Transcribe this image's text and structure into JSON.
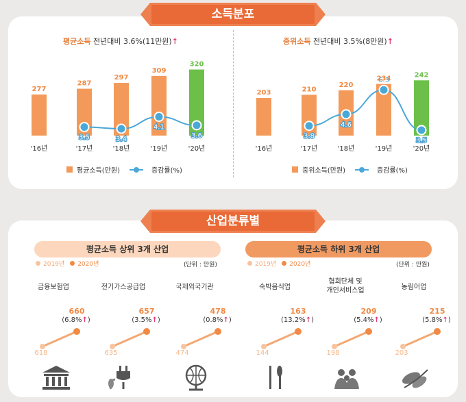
{
  "section1": {
    "title": "소득분포",
    "left": {
      "title_hl": "평균소득",
      "title_rest": "전년대비 3.6%(11만원)",
      "title_arrow": "↑",
      "legend_bar": "평균소득(만원)",
      "legend_line": "증감률(%)"
    },
    "right": {
      "title_hl": "중위소득",
      "title_rest": "전년대비 3.5%(8만원)",
      "title_arrow": "↑",
      "legend_bar": "중위소득(만원)",
      "legend_line": "증감률(%)"
    }
  },
  "section2": {
    "title": "산업분류별",
    "top": {
      "title": "평균소득 상위 3개 산업",
      "legend_2019": "2019년",
      "legend_2020": "2020년",
      "unit": "(단위 : 만원)",
      "items": [
        {
          "name": "금융보험업",
          "v2019": "618",
          "v2020": "660",
          "pct": "(6.8%",
          "icon": "bank-icon"
        },
        {
          "name": "전기가스공급업",
          "v2019": "635",
          "v2020": "657",
          "pct": "(3.5%",
          "icon": "plug-icon"
        },
        {
          "name": "국제외국기관",
          "v2019": "474",
          "v2020": "478",
          "pct": "(0.8%",
          "icon": "globe-icon"
        }
      ]
    },
    "bottom": {
      "title": "평균소득 하위 3개 산업",
      "legend_2019": "2019년",
      "legend_2020": "2020년",
      "unit": "(단위 : 만원)",
      "items": [
        {
          "name": "숙박음식업",
          "v2019": "144",
          "v2020": "163",
          "pct": "(13.2%",
          "icon": "utensils-icon"
        },
        {
          "name": "협회단체 및\n개인서비스업",
          "v2019": "198",
          "v2020": "209",
          "pct": "(5.4%",
          "icon": "people-icon"
        },
        {
          "name": "농림어업",
          "v2019": "203",
          "v2020": "215",
          "pct": "(5.8%",
          "icon": "crops-icon"
        }
      ]
    },
    "arrow": "↑",
    "close_paren": ")"
  },
  "chart_data": [
    {
      "type": "bar",
      "title": "평균소득 전년대비 3.6%(11만원)",
      "categories": [
        "'16년",
        "'17년",
        "'18년",
        "'19년",
        "'20년"
      ],
      "series": [
        {
          "name": "평균소득(만원)",
          "type": "bar",
          "values": [
            277,
            287,
            297,
            309,
            320
          ]
        },
        {
          "name": "증감률(%)",
          "type": "line",
          "values": [
            null,
            3.5,
            3.4,
            4.1,
            3.6
          ]
        }
      ],
      "highlight_color": "#6cc04a",
      "bar_color": "#f39a5a",
      "line_color": "#4aa8d8"
    },
    {
      "type": "bar",
      "title": "중위소득 전년대비 3.5%(8만원)",
      "categories": [
        "'16년",
        "'17년",
        "'18년",
        "'19년",
        "'20년"
      ],
      "series": [
        {
          "name": "중위소득(만원)",
          "type": "bar",
          "values": [
            203,
            210,
            220,
            234,
            242
          ]
        },
        {
          "name": "증감률(%)",
          "type": "line",
          "values": [
            null,
            3.8,
            4.6,
            6.3,
            3.5
          ]
        }
      ],
      "highlight_color": "#6cc04a",
      "bar_color": "#f39a5a",
      "line_color": "#4aa8d8"
    }
  ]
}
